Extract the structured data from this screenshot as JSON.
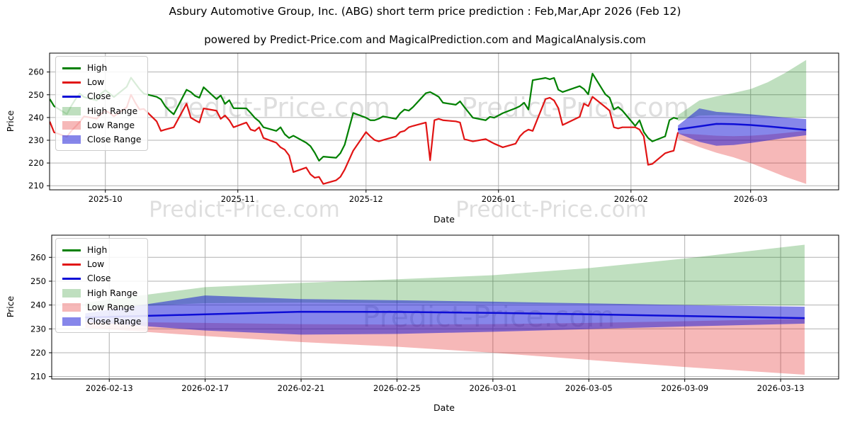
{
  "header": {
    "title": "Asbury Automotive Group, Inc. (ABG) short term price prediction : Feb,Mar,Apr 2026 (Feb 12)",
    "subtitle": "powered by Predict-Price.com and MagicalPrediction.com and MagicalAnalysis.com"
  },
  "watermark": {
    "text": "Predict-Price.com"
  },
  "colors": {
    "high": "#008000",
    "low": "#e11414",
    "close": "#0d0dd6",
    "grid": "#b0b0b0",
    "spine": "#000000"
  },
  "legend": {
    "items": [
      {
        "label": "High",
        "swatch": "line",
        "color": "high"
      },
      {
        "label": "Low",
        "swatch": "line",
        "color": "low"
      },
      {
        "label": "Close",
        "swatch": "line",
        "color": "close"
      },
      {
        "label": "High Range",
        "swatch": "patch",
        "color": "high"
      },
      {
        "label": "Low Range",
        "swatch": "patch",
        "color": "low"
      },
      {
        "label": "Close Range",
        "swatch": "patch",
        "color": "close"
      }
    ]
  },
  "chart_data": {
    "type": "line",
    "title": "Asbury Automotive Group, Inc. (ABG) short term price prediction : Feb,Mar,Apr 2026 (Feb 12)",
    "xlabel": "Date",
    "ylabel": "Price",
    "y_ticks": [
      210,
      220,
      230,
      240,
      250,
      260
    ],
    "x_ticks_top": [
      "2025-10",
      "2025-11",
      "2025-12",
      "2026-01",
      "2026-02",
      "2026-03"
    ],
    "x_ticks_bottom": [
      "2026-02-13",
      "2026-02-17",
      "2026-02-21",
      "2026-02-25",
      "2026-03-01",
      "2026-03-05",
      "2026-03-09",
      "2026-03-13"
    ],
    "top_axis": {
      "ylim": [
        208.2,
        268.3
      ],
      "xlim_start": "2025-09-18",
      "xlim_end": "2026-03-21",
      "grid": true,
      "legend_position": "upper left"
    },
    "bottom_axis": {
      "ylim": [
        209.0,
        269.3
      ],
      "xlim_start": "2026-02-10",
      "xlim_end": "2026-03-15",
      "grid": true,
      "legend_position": "upper left"
    },
    "historical": {
      "dates": [
        "2025-09-18",
        "2025-09-19",
        "2025-09-22",
        "2025-09-23",
        "2025-09-24",
        "2025-09-25",
        "2025-09-26",
        "2025-09-29",
        "2025-09-30",
        "2025-10-01",
        "2025-10-02",
        "2025-10-03",
        "2025-10-06",
        "2025-10-07",
        "2025-10-08",
        "2025-10-09",
        "2025-10-10",
        "2025-10-13",
        "2025-10-14",
        "2025-10-15",
        "2025-10-16",
        "2025-10-17",
        "2025-10-20",
        "2025-10-21",
        "2025-10-22",
        "2025-10-23",
        "2025-10-24",
        "2025-10-27",
        "2025-10-28",
        "2025-10-29",
        "2025-10-30",
        "2025-10-31",
        "2025-11-03",
        "2025-11-04",
        "2025-11-05",
        "2025-11-06",
        "2025-11-07",
        "2025-11-10",
        "2025-11-11",
        "2025-11-12",
        "2025-11-13",
        "2025-11-14",
        "2025-11-17",
        "2025-11-18",
        "2025-11-19",
        "2025-11-20",
        "2025-11-21",
        "2025-11-24",
        "2025-11-25",
        "2025-11-26",
        "2025-11-28",
        "2025-12-01",
        "2025-12-02",
        "2025-12-03",
        "2025-12-04",
        "2025-12-05",
        "2025-12-08",
        "2025-12-09",
        "2025-12-10",
        "2025-12-11",
        "2025-12-12",
        "2025-12-15",
        "2025-12-16",
        "2025-12-17",
        "2025-12-18",
        "2025-12-19",
        "2025-12-22",
        "2025-12-23",
        "2025-12-24",
        "2025-12-26",
        "2025-12-29",
        "2025-12-30",
        "2025-12-31",
        "2026-01-02",
        "2026-01-05",
        "2026-01-06",
        "2026-01-07",
        "2026-01-08",
        "2026-01-09",
        "2026-01-12",
        "2026-01-13",
        "2026-01-14",
        "2026-01-15",
        "2026-01-16",
        "2026-01-20",
        "2026-01-21",
        "2026-01-22",
        "2026-01-23",
        "2026-01-26",
        "2026-01-27",
        "2026-01-28",
        "2026-01-29",
        "2026-01-30",
        "2026-02-02",
        "2026-02-03",
        "2026-02-04",
        "2026-02-05",
        "2026-02-06",
        "2026-02-09",
        "2026-02-10",
        "2026-02-11",
        "2026-02-12"
      ],
      "high": [
        248.1,
        245.0,
        241.5,
        245.0,
        248.0,
        250.5,
        249.0,
        247.5,
        250.5,
        252.0,
        250.5,
        249.0,
        253.5,
        257.5,
        255.0,
        252.5,
        250.5,
        249.1,
        248.0,
        245.0,
        243.0,
        241.4,
        252.2,
        251.2,
        249.5,
        248.7,
        253.3,
        248.1,
        249.7,
        246.0,
        247.6,
        244.1,
        244.0,
        242.0,
        239.8,
        238.3,
        235.7,
        234.1,
        235.7,
        232.6,
        231.0,
        232.0,
        228.9,
        227.4,
        224.5,
        221.0,
        222.8,
        222.3,
        224.3,
        228.0,
        242.0,
        239.9,
        238.8,
        238.8,
        239.5,
        240.5,
        239.4,
        241.9,
        243.5,
        243.0,
        244.6,
        250.7,
        251.2,
        250.2,
        249.1,
        246.5,
        245.6,
        247.1,
        244.6,
        239.9,
        238.8,
        240.3,
        239.9,
        241.9,
        244.1,
        245.0,
        246.5,
        243.5,
        256.4,
        257.4,
        256.8,
        257.4,
        252.2,
        251.2,
        253.8,
        252.5,
        250.2,
        259.3,
        250.2,
        248.7,
        243.5,
        244.6,
        243.0,
        236.3,
        238.8,
        233.6,
        231.0,
        229.5,
        231.7,
        238.8,
        239.9,
        239.4
      ],
      "low": [
        238.2,
        233.5,
        231.5,
        234.0,
        236.0,
        238.0,
        240.5,
        239.5,
        241.5,
        243.0,
        242.0,
        240.5,
        244.5,
        250.0,
        246.5,
        243.5,
        243.8,
        238.3,
        234.1,
        234.7,
        235.2,
        235.7,
        246.1,
        239.9,
        238.8,
        237.8,
        244.0,
        243.0,
        239.4,
        240.9,
        238.8,
        235.7,
        237.8,
        234.7,
        234.1,
        235.7,
        231.0,
        228.9,
        226.9,
        225.8,
        223.3,
        216.0,
        218.0,
        215.0,
        213.5,
        213.9,
        210.8,
        212.4,
        213.9,
        217.1,
        225.4,
        233.6,
        231.7,
        230.1,
        229.5,
        230.1,
        231.7,
        233.6,
        234.1,
        235.7,
        236.3,
        237.8,
        221.2,
        238.8,
        239.4,
        238.8,
        238.3,
        237.8,
        230.5,
        229.5,
        230.5,
        229.5,
        228.5,
        226.9,
        228.5,
        231.7,
        233.6,
        234.7,
        234.1,
        248.1,
        248.7,
        247.5,
        244.1,
        236.7,
        240.3,
        246.1,
        245.0,
        249.1,
        244.6,
        243.0,
        235.7,
        235.2,
        235.7,
        235.7,
        234.7,
        231.7,
        219.2,
        219.6,
        224.3,
        224.9,
        225.4,
        233.5
      ]
    },
    "prediction": {
      "dates": [
        "2026-02-12",
        "2026-02-17",
        "2026-02-21",
        "2026-02-25",
        "2026-03-01",
        "2026-03-05",
        "2026-03-09",
        "2026-03-14"
      ],
      "close": [
        234.8,
        236.1,
        237.2,
        237.1,
        236.7,
        236.1,
        235.4,
        234.5
      ],
      "close_upper": [
        236.5,
        244.0,
        242.5,
        242.0,
        241.4,
        240.7,
        240.0,
        239.3
      ],
      "close_lower": [
        233.0,
        229.3,
        227.6,
        227.9,
        228.8,
        229.9,
        231.0,
        232.2
      ],
      "high_upper": [
        241.0,
        247.5,
        249.3,
        250.8,
        252.5,
        255.5,
        259.5,
        265.3
      ],
      "high_lower": [
        238.5,
        240.8,
        241.0,
        240.8,
        240.6,
        240.3,
        240.0,
        239.8
      ],
      "low_upper": [
        233.0,
        232.5,
        232.0,
        231.8,
        232.0,
        232.5,
        233.2,
        234.2
      ],
      "low_lower": [
        230.5,
        227.0,
        224.5,
        222.5,
        220.0,
        217.0,
        214.0,
        210.8
      ]
    }
  }
}
